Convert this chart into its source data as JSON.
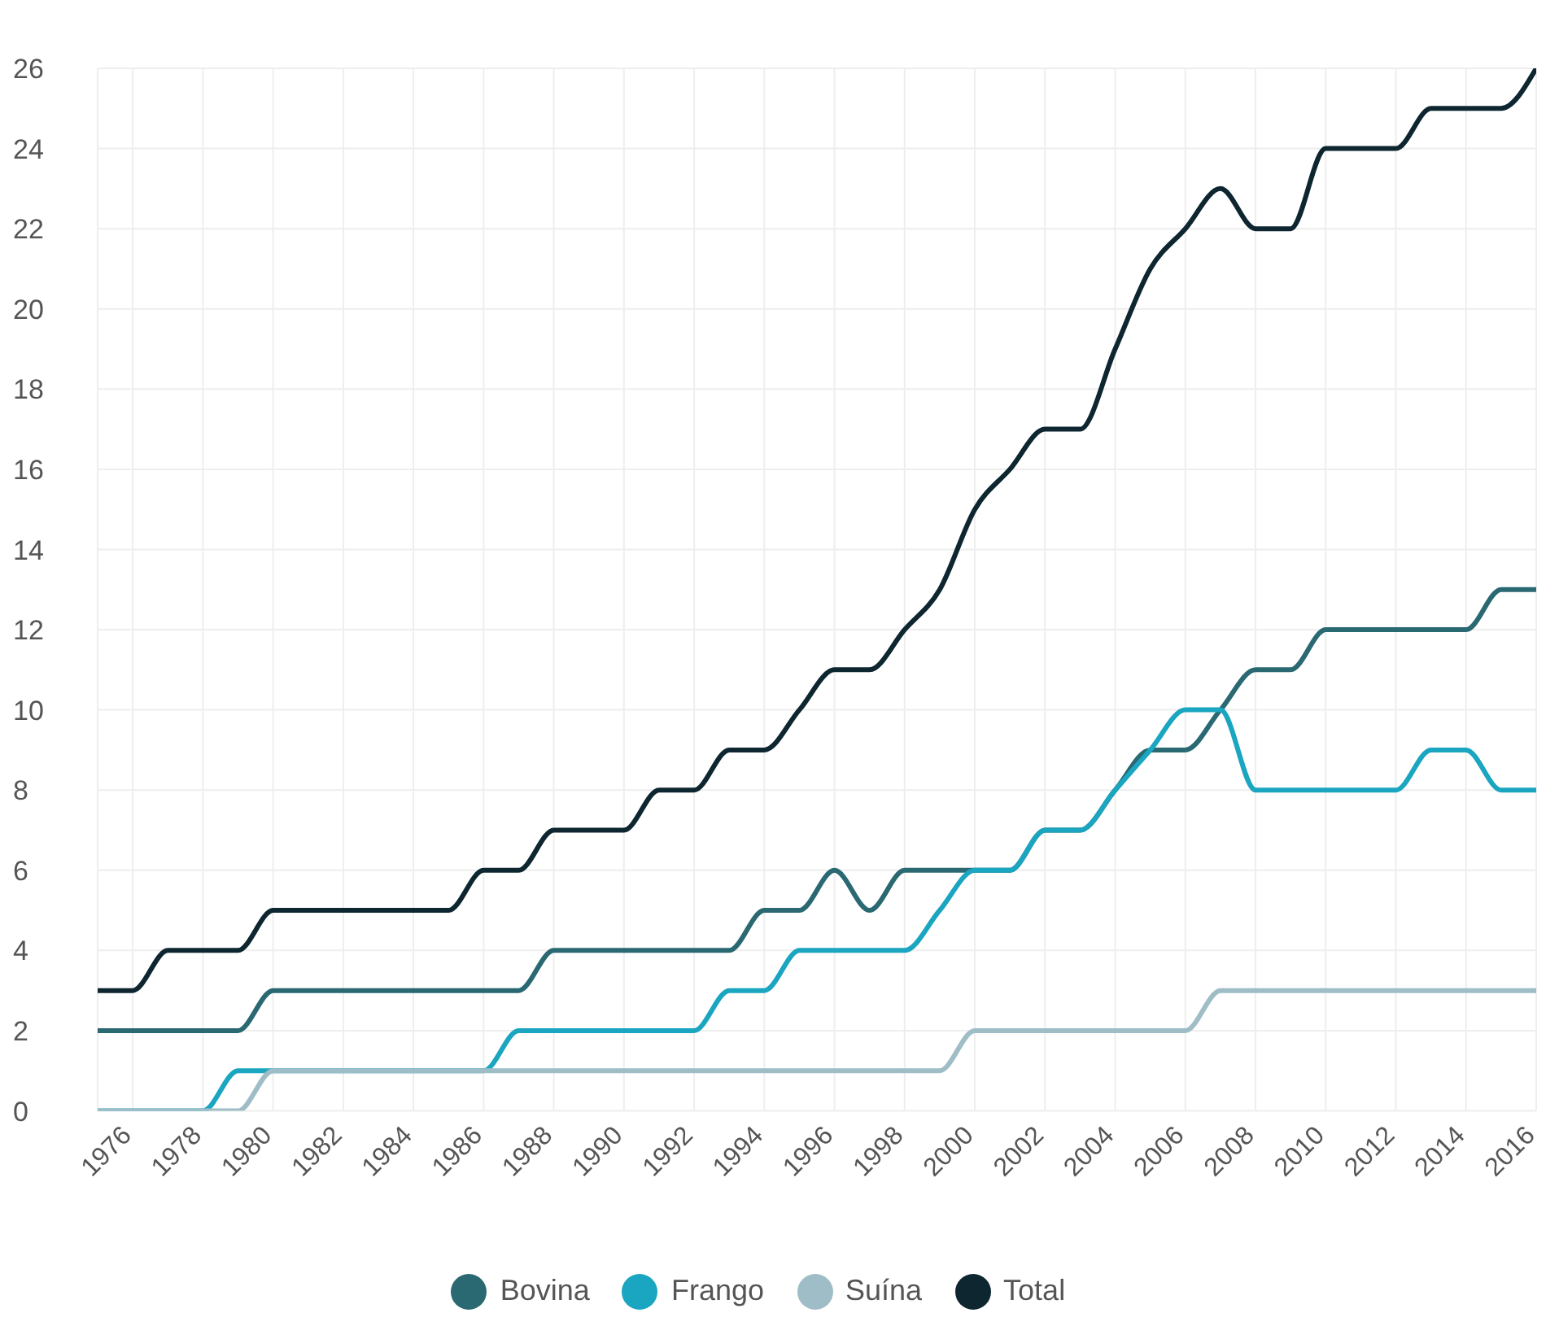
{
  "chart_data": {
    "type": "line",
    "categories": [
      null,
      "1976",
      null,
      "1978",
      null,
      "1980",
      null,
      "1982",
      null,
      "1984",
      null,
      "1986",
      null,
      "1988",
      null,
      "1990",
      null,
      "1992",
      null,
      "1994",
      null,
      "1996",
      null,
      "1998",
      null,
      "2000",
      null,
      "2002",
      null,
      "2004",
      null,
      "2006",
      null,
      "2008",
      null,
      "2010",
      null,
      "2012",
      null,
      "2014",
      null,
      "2016"
    ],
    "series": [
      {
        "name": "Bovina",
        "color": "#2a6872",
        "values": [
          2,
          2,
          2,
          2,
          2,
          3,
          3,
          3,
          3,
          3,
          3,
          3,
          3,
          4,
          4,
          4,
          4,
          4,
          4,
          5,
          5,
          6,
          5,
          6,
          6,
          6,
          6,
          7,
          7,
          8,
          9,
          9,
          10,
          11,
          11,
          12,
          12,
          12,
          12,
          12,
          13,
          13
        ]
      },
      {
        "name": "Frango",
        "color": "#1aa5c0",
        "values": [
          0,
          0,
          0,
          0,
          1,
          1,
          1,
          1,
          1,
          1,
          1,
          1,
          2,
          2,
          2,
          2,
          2,
          2,
          3,
          3,
          4,
          4,
          4,
          4,
          5,
          6,
          6,
          7,
          7,
          8,
          9,
          10,
          10,
          8,
          8,
          8,
          8,
          8,
          9,
          9,
          8,
          8
        ]
      },
      {
        "name": "Suína",
        "color": "#9fbdc7",
        "values": [
          0,
          0,
          0,
          0,
          0,
          1,
          1,
          1,
          1,
          1,
          1,
          1,
          1,
          1,
          1,
          1,
          1,
          1,
          1,
          1,
          1,
          1,
          1,
          1,
          1,
          2,
          2,
          2,
          2,
          2,
          2,
          2,
          3,
          3,
          3,
          3,
          3,
          3,
          3,
          3,
          3,
          3
        ]
      },
      {
        "name": "Total",
        "color": "#0e2630",
        "values": [
          3,
          3,
          4,
          4,
          4,
          5,
          5,
          5,
          5,
          5,
          5,
          6,
          6,
          7,
          7,
          7,
          8,
          8,
          9,
          9,
          10,
          11,
          11,
          12,
          13,
          15,
          16,
          17,
          17,
          19,
          21,
          22,
          23,
          22,
          22,
          24,
          24,
          24,
          25,
          25,
          25,
          26
        ]
      }
    ],
    "ylim": [
      0,
      26
    ],
    "yticks": [
      0,
      2,
      4,
      6,
      8,
      10,
      12,
      14,
      16,
      18,
      20,
      22,
      24,
      26
    ],
    "grid": true,
    "legend": "bottom",
    "marker": "none",
    "line_style": "solid"
  }
}
